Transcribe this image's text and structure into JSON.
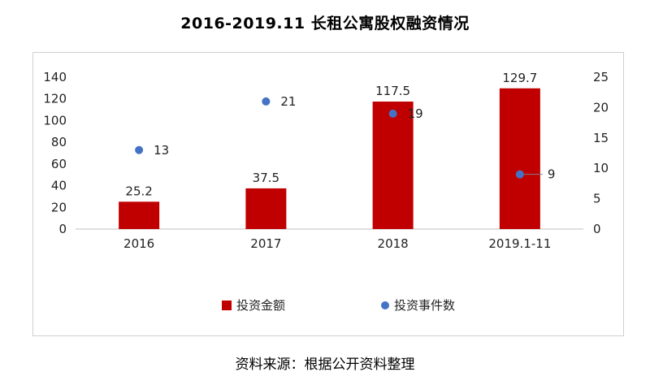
{
  "title": "2016-2019.11  长租公寓股权融资情况",
  "source": "资料来源：根据公开资料整理",
  "chart_data": {
    "type": "bar",
    "categories": [
      "2016",
      "2017",
      "2018",
      "2019.1-11"
    ],
    "series": [
      {
        "name": "投资金额",
        "type": "bar",
        "axis": "left",
        "color": "#c00000",
        "values": [
          25.2,
          37.5,
          117.5,
          129.7
        ],
        "labels": [
          "25.2",
          "37.5",
          "117.5",
          "129.7"
        ]
      },
      {
        "name": "投资事件数",
        "type": "scatter",
        "axis": "right",
        "color": "#4472c4",
        "values": [
          13,
          21,
          19,
          9
        ],
        "labels": [
          "13",
          "21",
          "19",
          "9"
        ]
      }
    ],
    "y_left": {
      "min": 0,
      "max": 140,
      "ticks": [
        0,
        20,
        40,
        60,
        80,
        100,
        120,
        140
      ]
    },
    "y_right": {
      "min": 0,
      "max": 25,
      "ticks": [
        0,
        5,
        10,
        15,
        20,
        25
      ]
    },
    "legend_position": "bottom",
    "grid": false
  }
}
